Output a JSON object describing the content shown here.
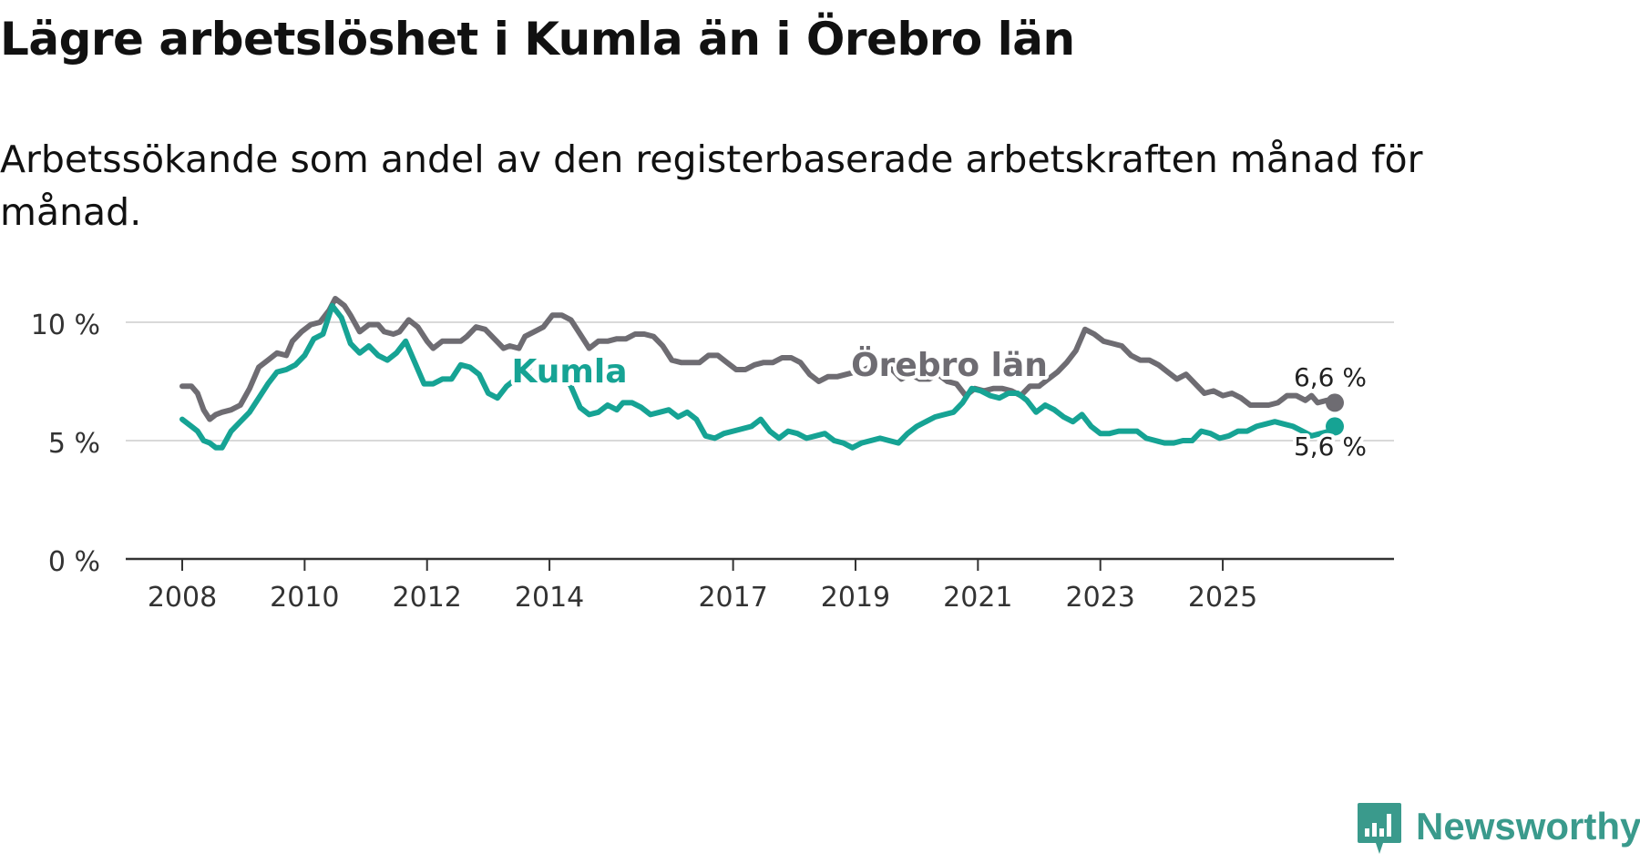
{
  "header": {
    "title": "Lägre arbetslöshet i Kumla än i Örebro län",
    "subtitle": "Arbetssökande som andel av den registerbaserade arbetskraften månad för månad."
  },
  "brand": {
    "name": "Newsworthy",
    "color": "#3a9a8c"
  },
  "chart_data": {
    "type": "line",
    "title": "Lägre arbetslöshet i Kumla än i Örebro län",
    "subtitle": "Arbetssökande som andel av den registerbaserade arbetskraften månad för månad.",
    "xlabel": "",
    "ylabel": "",
    "x_range": [
      2008.0,
      2026.83
    ],
    "ylim": [
      0,
      11.5
    ],
    "x_ticks": [
      2008,
      2010,
      2012,
      2014,
      2017,
      2019,
      2021,
      2023,
      2025
    ],
    "x_tick_labels": [
      "2008",
      "2010",
      "2012",
      "2014",
      "2017",
      "2019",
      "2021",
      "2023",
      "2025"
    ],
    "y_ticks": [
      0,
      5,
      10
    ],
    "y_tick_labels": [
      "0 %",
      "5 %",
      "10 %"
    ],
    "grid": "horizontal",
    "series": [
      {
        "name": "Örebro län",
        "label": "Örebro län",
        "color": "#6e6c72",
        "end_label": "6,6 %",
        "points": [
          [
            2008.0,
            7.3
          ],
          [
            2008.15,
            7.3
          ],
          [
            2008.25,
            7.0
          ],
          [
            2008.35,
            6.3
          ],
          [
            2008.45,
            5.9
          ],
          [
            2008.55,
            6.1
          ],
          [
            2008.65,
            6.2
          ],
          [
            2008.8,
            6.3
          ],
          [
            2008.95,
            6.5
          ],
          [
            2009.1,
            7.2
          ],
          [
            2009.25,
            8.1
          ],
          [
            2009.4,
            8.4
          ],
          [
            2009.55,
            8.7
          ],
          [
            2009.7,
            8.6
          ],
          [
            2009.8,
            9.2
          ],
          [
            2009.95,
            9.6
          ],
          [
            2010.1,
            9.9
          ],
          [
            2010.25,
            10.0
          ],
          [
            2010.4,
            10.5
          ],
          [
            2010.5,
            11.0
          ],
          [
            2010.65,
            10.7
          ],
          [
            2010.75,
            10.3
          ],
          [
            2010.9,
            9.6
          ],
          [
            2011.05,
            9.9
          ],
          [
            2011.2,
            9.9
          ],
          [
            2011.3,
            9.6
          ],
          [
            2011.45,
            9.5
          ],
          [
            2011.55,
            9.6
          ],
          [
            2011.7,
            10.1
          ],
          [
            2011.85,
            9.8
          ],
          [
            2012.0,
            9.2
          ],
          [
            2012.1,
            8.9
          ],
          [
            2012.25,
            9.2
          ],
          [
            2012.4,
            9.2
          ],
          [
            2012.55,
            9.2
          ],
          [
            2012.65,
            9.4
          ],
          [
            2012.8,
            9.8
          ],
          [
            2012.95,
            9.7
          ],
          [
            2013.1,
            9.3
          ],
          [
            2013.25,
            8.9
          ],
          [
            2013.35,
            9.0
          ],
          [
            2013.5,
            8.9
          ],
          [
            2013.6,
            9.4
          ],
          [
            2013.75,
            9.6
          ],
          [
            2013.9,
            9.8
          ],
          [
            2014.05,
            10.3
          ],
          [
            2014.2,
            10.3
          ],
          [
            2014.35,
            10.1
          ],
          [
            2014.5,
            9.5
          ],
          [
            2014.65,
            8.9
          ],
          [
            2014.8,
            9.2
          ],
          [
            2014.95,
            9.2
          ],
          [
            2015.1,
            9.3
          ],
          [
            2015.25,
            9.3
          ],
          [
            2015.4,
            9.5
          ],
          [
            2015.55,
            9.5
          ],
          [
            2015.7,
            9.4
          ],
          [
            2015.85,
            9.0
          ],
          [
            2016.0,
            8.4
          ],
          [
            2016.15,
            8.3
          ],
          [
            2016.3,
            8.3
          ],
          [
            2016.45,
            8.3
          ],
          [
            2016.6,
            8.6
          ],
          [
            2016.75,
            8.6
          ],
          [
            2016.9,
            8.3
          ],
          [
            2017.05,
            8.0
          ],
          [
            2017.2,
            8.0
          ],
          [
            2017.35,
            8.2
          ],
          [
            2017.5,
            8.3
          ],
          [
            2017.65,
            8.3
          ],
          [
            2017.8,
            8.5
          ],
          [
            2017.95,
            8.5
          ],
          [
            2018.1,
            8.3
          ],
          [
            2018.25,
            7.8
          ],
          [
            2018.4,
            7.5
          ],
          [
            2018.55,
            7.7
          ],
          [
            2018.7,
            7.7
          ],
          [
            2018.85,
            7.8
          ],
          [
            2019.0,
            7.9
          ],
          [
            2019.15,
            8.0
          ],
          [
            2019.3,
            8.2
          ],
          [
            2019.45,
            8.2
          ],
          [
            2019.6,
            8.0
          ],
          [
            2019.75,
            7.6
          ],
          [
            2019.9,
            7.8
          ],
          [
            2020.05,
            7.6
          ],
          [
            2020.2,
            7.6
          ],
          [
            2020.35,
            7.8
          ],
          [
            2020.5,
            7.5
          ],
          [
            2020.65,
            7.4
          ],
          [
            2020.8,
            6.9
          ],
          [
            2020.95,
            7.2
          ],
          [
            2021.1,
            7.1
          ],
          [
            2021.25,
            7.2
          ],
          [
            2021.4,
            7.2
          ],
          [
            2021.55,
            7.1
          ],
          [
            2021.7,
            6.9
          ],
          [
            2021.85,
            7.3
          ],
          [
            2022.0,
            7.3
          ],
          [
            2022.15,
            7.6
          ],
          [
            2022.3,
            7.9
          ],
          [
            2022.45,
            8.3
          ],
          [
            2022.6,
            8.8
          ],
          [
            2022.75,
            9.7
          ],
          [
            2022.9,
            9.5
          ],
          [
            2023.05,
            9.2
          ],
          [
            2023.2,
            9.1
          ],
          [
            2023.35,
            9.0
          ],
          [
            2023.5,
            8.6
          ],
          [
            2023.65,
            8.4
          ],
          [
            2023.8,
            8.4
          ],
          [
            2023.95,
            8.2
          ],
          [
            2024.1,
            7.9
          ],
          [
            2024.25,
            7.6
          ],
          [
            2024.4,
            7.8
          ],
          [
            2024.55,
            7.4
          ],
          [
            2024.7,
            7.0
          ],
          [
            2024.85,
            7.1
          ],
          [
            2025.0,
            6.9
          ],
          [
            2025.15,
            7.0
          ],
          [
            2025.3,
            6.8
          ],
          [
            2025.45,
            6.5
          ],
          [
            2025.6,
            6.5
          ],
          [
            2025.75,
            6.5
          ],
          [
            2025.9,
            6.6
          ],
          [
            2026.05,
            6.9
          ],
          [
            2026.2,
            6.9
          ],
          [
            2026.35,
            6.7
          ],
          [
            2026.45,
            6.9
          ],
          [
            2026.55,
            6.6
          ],
          [
            2026.7,
            6.7
          ],
          [
            2026.83,
            6.6
          ]
        ]
      },
      {
        "name": "Kumla",
        "label": "Kumla",
        "color": "#16a394",
        "end_label": "5,6 %",
        "points": [
          [
            2008.0,
            5.9
          ],
          [
            2008.15,
            5.6
          ],
          [
            2008.25,
            5.4
          ],
          [
            2008.35,
            5.0
          ],
          [
            2008.45,
            4.9
          ],
          [
            2008.55,
            4.7
          ],
          [
            2008.65,
            4.7
          ],
          [
            2008.8,
            5.4
          ],
          [
            2008.95,
            5.8
          ],
          [
            2009.1,
            6.2
          ],
          [
            2009.25,
            6.8
          ],
          [
            2009.4,
            7.4
          ],
          [
            2009.55,
            7.9
          ],
          [
            2009.7,
            8.0
          ],
          [
            2009.85,
            8.2
          ],
          [
            2010.0,
            8.6
          ],
          [
            2010.15,
            9.3
          ],
          [
            2010.3,
            9.5
          ],
          [
            2010.45,
            10.7
          ],
          [
            2010.6,
            10.2
          ],
          [
            2010.75,
            9.1
          ],
          [
            2010.9,
            8.7
          ],
          [
            2011.05,
            9.0
          ],
          [
            2011.2,
            8.6
          ],
          [
            2011.35,
            8.4
          ],
          [
            2011.5,
            8.7
          ],
          [
            2011.65,
            9.2
          ],
          [
            2011.8,
            8.3
          ],
          [
            2011.95,
            7.4
          ],
          [
            2012.1,
            7.4
          ],
          [
            2012.25,
            7.6
          ],
          [
            2012.4,
            7.6
          ],
          [
            2012.55,
            8.2
          ],
          [
            2012.7,
            8.1
          ],
          [
            2012.85,
            7.8
          ],
          [
            2013.0,
            7.0
          ],
          [
            2013.15,
            6.8
          ],
          [
            2013.3,
            7.3
          ],
          [
            2013.45,
            7.6
          ],
          [
            2013.6,
            7.8
          ],
          [
            2013.75,
            8.4
          ],
          [
            2013.9,
            8.0
          ],
          [
            2014.05,
            8.2
          ],
          [
            2014.2,
            8.0
          ],
          [
            2014.35,
            7.3
          ],
          [
            2014.5,
            6.4
          ],
          [
            2014.65,
            6.1
          ],
          [
            2014.8,
            6.2
          ],
          [
            2014.95,
            6.5
          ],
          [
            2015.1,
            6.3
          ],
          [
            2015.2,
            6.6
          ],
          [
            2015.35,
            6.6
          ],
          [
            2015.5,
            6.4
          ],
          [
            2015.65,
            6.1
          ],
          [
            2015.8,
            6.2
          ],
          [
            2015.95,
            6.3
          ],
          [
            2016.1,
            6.0
          ],
          [
            2016.25,
            6.2
          ],
          [
            2016.4,
            5.9
          ],
          [
            2016.55,
            5.2
          ],
          [
            2016.7,
            5.1
          ],
          [
            2016.85,
            5.3
          ],
          [
            2017.0,
            5.4
          ],
          [
            2017.15,
            5.5
          ],
          [
            2017.3,
            5.6
          ],
          [
            2017.45,
            5.9
          ],
          [
            2017.6,
            5.4
          ],
          [
            2017.75,
            5.1
          ],
          [
            2017.9,
            5.4
          ],
          [
            2018.05,
            5.3
          ],
          [
            2018.2,
            5.1
          ],
          [
            2018.35,
            5.2
          ],
          [
            2018.5,
            5.3
          ],
          [
            2018.65,
            5.0
          ],
          [
            2018.8,
            4.9
          ],
          [
            2018.95,
            4.7
          ],
          [
            2019.1,
            4.9
          ],
          [
            2019.25,
            5.0
          ],
          [
            2019.4,
            5.1
          ],
          [
            2019.55,
            5.0
          ],
          [
            2019.7,
            4.9
          ],
          [
            2019.85,
            5.3
          ],
          [
            2020.0,
            5.6
          ],
          [
            2020.15,
            5.8
          ],
          [
            2020.3,
            6.0
          ],
          [
            2020.45,
            6.1
          ],
          [
            2020.6,
            6.2
          ],
          [
            2020.75,
            6.6
          ],
          [
            2020.9,
            7.2
          ],
          [
            2021.05,
            7.1
          ],
          [
            2021.2,
            6.9
          ],
          [
            2021.35,
            6.8
          ],
          [
            2021.5,
            7.0
          ],
          [
            2021.65,
            7.0
          ],
          [
            2021.8,
            6.7
          ],
          [
            2021.95,
            6.2
          ],
          [
            2022.1,
            6.5
          ],
          [
            2022.25,
            6.3
          ],
          [
            2022.4,
            6.0
          ],
          [
            2022.55,
            5.8
          ],
          [
            2022.7,
            6.1
          ],
          [
            2022.85,
            5.6
          ],
          [
            2023.0,
            5.3
          ],
          [
            2023.15,
            5.3
          ],
          [
            2023.3,
            5.4
          ],
          [
            2023.45,
            5.4
          ],
          [
            2023.6,
            5.4
          ],
          [
            2023.75,
            5.1
          ],
          [
            2023.9,
            5.0
          ],
          [
            2024.05,
            4.9
          ],
          [
            2024.2,
            4.9
          ],
          [
            2024.35,
            5.0
          ],
          [
            2024.5,
            5.0
          ],
          [
            2024.65,
            5.4
          ],
          [
            2024.8,
            5.3
          ],
          [
            2024.95,
            5.1
          ],
          [
            2025.1,
            5.2
          ],
          [
            2025.25,
            5.4
          ],
          [
            2025.4,
            5.4
          ],
          [
            2025.55,
            5.6
          ],
          [
            2025.7,
            5.7
          ],
          [
            2025.85,
            5.8
          ],
          [
            2026.0,
            5.7
          ],
          [
            2026.15,
            5.6
          ],
          [
            2026.3,
            5.4
          ],
          [
            2026.45,
            5.2
          ],
          [
            2026.6,
            5.3
          ],
          [
            2026.75,
            5.4
          ],
          [
            2026.83,
            5.6
          ]
        ]
      }
    ]
  }
}
